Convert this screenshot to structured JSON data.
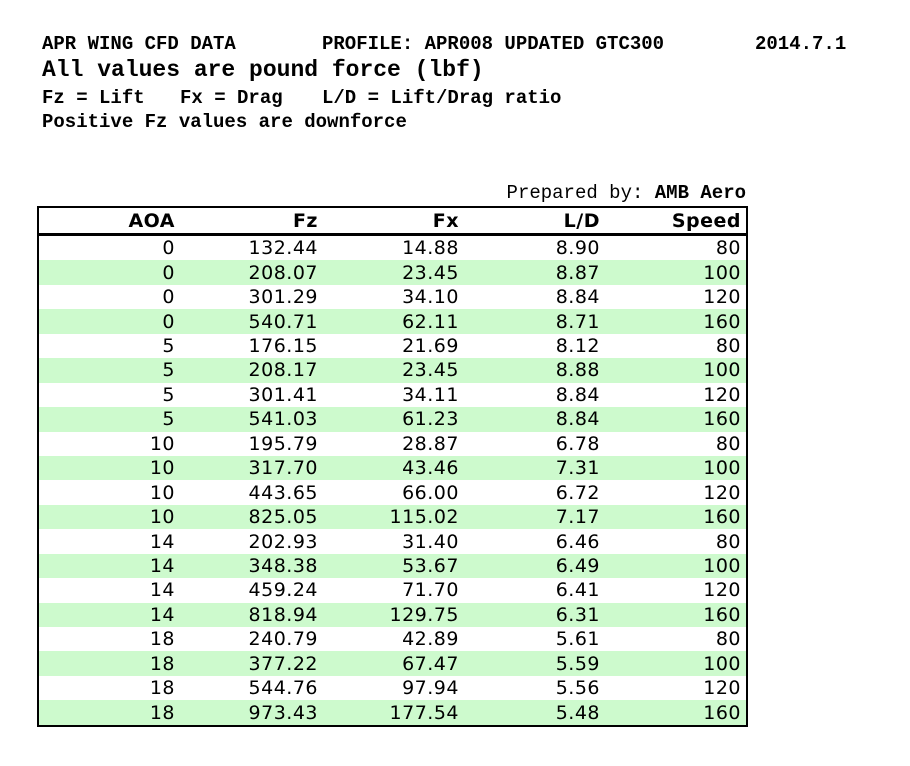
{
  "header": {
    "title": "APR WING CFD DATA",
    "profile": "PROFILE: APR008 UPDATED GTC300",
    "date": "2014.7.1",
    "subtitle": "All values are pound force (lbf)",
    "legend": [
      "Fz = Lift",
      "Fx = Drag",
      "L/D = Lift/Drag ratio"
    ],
    "note": "Positive Fz values are downforce"
  },
  "prepared_by": {
    "label": "Prepared by: ",
    "value": "AMB Aero"
  },
  "table": {
    "columns": [
      "AOA",
      "Fz",
      "Fx",
      "L/D",
      "Speed"
    ],
    "rows": [
      [
        "0",
        "132.44",
        "14.88",
        "8.90",
        "80"
      ],
      [
        "0",
        "208.07",
        "23.45",
        "8.87",
        "100"
      ],
      [
        "0",
        "301.29",
        "34.10",
        "8.84",
        "120"
      ],
      [
        "0",
        "540.71",
        "62.11",
        "8.71",
        "160"
      ],
      [
        "5",
        "176.15",
        "21.69",
        "8.12",
        "80"
      ],
      [
        "5",
        "208.17",
        "23.45",
        "8.88",
        "100"
      ],
      [
        "5",
        "301.41",
        "34.11",
        "8.84",
        "120"
      ],
      [
        "5",
        "541.03",
        "61.23",
        "8.84",
        "160"
      ],
      [
        "10",
        "195.79",
        "28.87",
        "6.78",
        "80"
      ],
      [
        "10",
        "317.70",
        "43.46",
        "7.31",
        "100"
      ],
      [
        "10",
        "443.65",
        "66.00",
        "6.72",
        "120"
      ],
      [
        "10",
        "825.05",
        "115.02",
        "7.17",
        "160"
      ],
      [
        "14",
        "202.93",
        "31.40",
        "6.46",
        "80"
      ],
      [
        "14",
        "348.38",
        "53.67",
        "6.49",
        "100"
      ],
      [
        "14",
        "459.24",
        "71.70",
        "6.41",
        "120"
      ],
      [
        "14",
        "818.94",
        "129.75",
        "6.31",
        "160"
      ],
      [
        "18",
        "240.79",
        "42.89",
        "5.61",
        "80"
      ],
      [
        "18",
        "377.22",
        "67.47",
        "5.59",
        "100"
      ],
      [
        "18",
        "544.76",
        "97.94",
        "5.56",
        "120"
      ],
      [
        "18",
        "973.43",
        "177.54",
        "5.48",
        "160"
      ]
    ],
    "colors": {
      "stripe": "#cdfacd",
      "border": "#000000",
      "text": "#000000"
    }
  }
}
